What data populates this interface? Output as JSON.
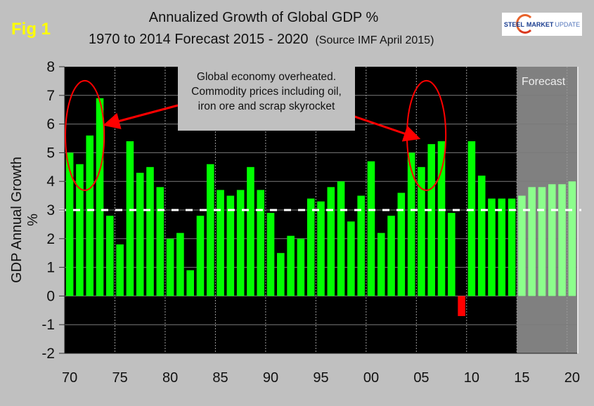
{
  "figure": {
    "fig_label": "Fig 1",
    "title_line1": "Annualized Growth of Global GDP %",
    "title_line2": "1970 to 2014 Forecast 2015 - 2020",
    "source_note": "(Source IMF April 2015)",
    "logo": {
      "word1": "STEEL",
      "word2": "MARKET",
      "word3": "UPDATE"
    }
  },
  "annotation": {
    "lines": [
      "Global economy overheated.",
      "Commodity prices including oil,",
      "iron ore and scrap skyrocket"
    ],
    "highlight_years": [
      [
        1970,
        1973
      ],
      [
        2004,
        2007
      ]
    ]
  },
  "forecast_label": "Forecast",
  "colors": {
    "historical_bar": "#00ff00",
    "forecast_bar": "#8cff8c",
    "negative_bar": "#ff0000",
    "plot_bg": "#000000",
    "forecast_bg": "#808080",
    "reference_line": "#ffffff",
    "highlight": "#ff0000",
    "fig_label": "#ffff00"
  },
  "chart_data": {
    "type": "bar",
    "title": "Annualized Growth of Global GDP % 1970 to 2014 Forecast 2015 - 2020",
    "xlabel": "",
    "ylabel": "GDP Annual Growth %",
    "ylim": [
      -2,
      8
    ],
    "yticks": [
      -2,
      -1,
      0,
      1,
      2,
      3,
      4,
      5,
      6,
      7,
      8
    ],
    "xtick_labels": [
      "70",
      "75",
      "80",
      "85",
      "90",
      "95",
      "00",
      "05",
      "10",
      "15",
      "20"
    ],
    "xtick_years": [
      1970,
      1975,
      1980,
      1985,
      1990,
      1995,
      2000,
      2005,
      2010,
      2015,
      2020
    ],
    "reference_line": 3,
    "grid": true,
    "forecast_start": 2015,
    "categories": [
      1970,
      1971,
      1972,
      1973,
      1974,
      1975,
      1976,
      1977,
      1978,
      1979,
      1980,
      1981,
      1982,
      1983,
      1984,
      1985,
      1986,
      1987,
      1988,
      1989,
      1990,
      1991,
      1992,
      1993,
      1994,
      1995,
      1996,
      1997,
      1998,
      1999,
      2000,
      2001,
      2002,
      2003,
      2004,
      2005,
      2006,
      2007,
      2008,
      2009,
      2010,
      2011,
      2012,
      2013,
      2014,
      2015,
      2016,
      2017,
      2018,
      2019,
      2020
    ],
    "values": [
      5.0,
      4.6,
      5.6,
      6.9,
      2.8,
      1.8,
      5.4,
      4.3,
      4.5,
      3.8,
      2.0,
      2.2,
      0.9,
      2.8,
      4.6,
      3.7,
      3.5,
      3.7,
      4.5,
      3.7,
      2.9,
      1.5,
      2.1,
      2.0,
      3.4,
      3.3,
      3.8,
      4.0,
      2.6,
      3.5,
      4.7,
      2.2,
      2.8,
      3.6,
      5.0,
      4.5,
      5.3,
      5.4,
      2.9,
      -0.7,
      5.4,
      4.2,
      3.4,
      3.4,
      3.4,
      3.5,
      3.8,
      3.8,
      3.9,
      3.9,
      4.0
    ]
  }
}
